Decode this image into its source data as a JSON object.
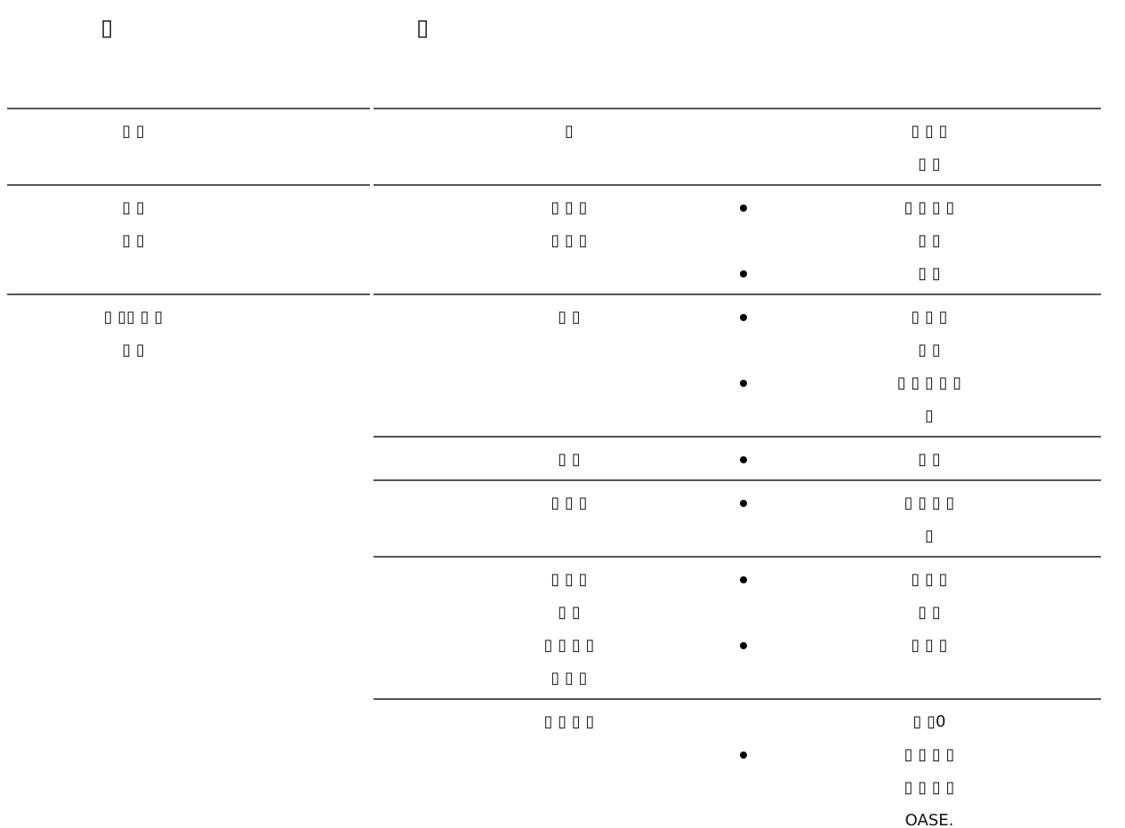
{
  "header": {
    "columns": [
      "▯",
      "▯"
    ]
  },
  "table": {
    "rows": [
      {
        "label": [
          "▯  ▯"
        ],
        "cells": [
          {
            "text": [
              "▯"
            ],
            "note": [
              "▯          ▯  ▯",
              "▯          ▯"
            ],
            "bullets": []
          }
        ]
      },
      {
        "label": [
          "▯         ▯",
          "▯     ▯"
        ],
        "cells": [
          {
            "text": [
              "▯  ▯            ▯",
              "▯    ▯    ▯"
            ],
            "bullets": [
              [
                "▯      ▯      ▯  ▯",
                "▯    ▯"
              ],
              [
                "▯       ▯"
              ]
            ]
          }
        ]
      },
      {
        "label": [
          "▯      ▯▯   ▯  ▯",
          "▯    ▯"
        ],
        "cells": [
          {
            "text": [
              "▯    ▯"
            ],
            "bullets": [
              [
                "▯       ▯     ▯",
                "▯       ▯"
              ],
              [
                "▯    ▯  ▯   ▯  ▯",
                "▯"
              ]
            ]
          },
          {
            "text": [
              "▯      ▯"
            ],
            "bullets": [
              [
                "▯      ▯"
              ]
            ]
          },
          {
            "text": [
              "▯ ▯       ▯"
            ],
            "bullets": [
              [
                "▯      ▯ ▯    ▯",
                "▯"
              ]
            ]
          },
          {
            "text": [
              "▯ ▯ ▯",
              "▯           ▯",
              "▯       ▯      ▯ ▯",
              "▯ ▯       ▯"
            ],
            "bullets": [
              [
                "▯         ▯  ▯",
                "▯     ▯"
              ],
              [
                "▯        ▯  ▯"
              ]
            ]
          },
          {
            "text": [
              "▯     ▯ ▯      ▯"
            ],
            "note": [
              "▯ ▯0"
            ],
            "bullets": [
              [
                "▯     ▯    ▯   ▯",
                "▯    ▯      ▯     ▯",
                "OASE."
              ]
            ]
          }
        ]
      }
    ]
  }
}
